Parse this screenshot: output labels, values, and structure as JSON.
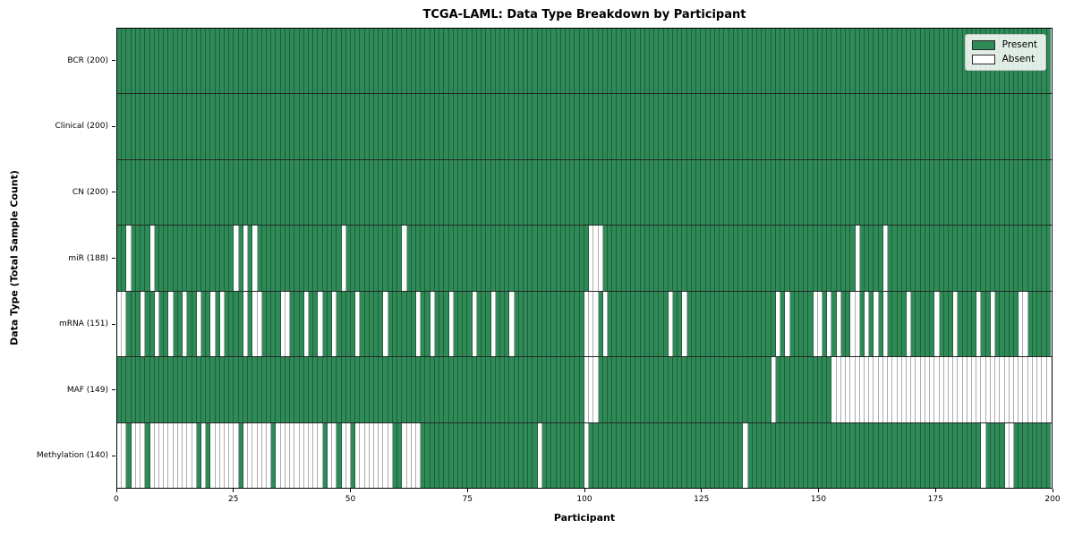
{
  "chart_data": {
    "type": "heatmap",
    "title": "TCGA-LAML: Data Type Breakdown by Participant",
    "xlabel": "Participant",
    "ylabel": "Data Type (Total Sample Count)",
    "x_ticks": [
      0,
      25,
      50,
      75,
      100,
      125,
      150,
      175,
      200
    ],
    "n_participants": 200,
    "xlim": [
      0,
      200
    ],
    "grid": "cell-borders",
    "legend_position": "upper right",
    "legend": {
      "present_label": "Present",
      "absent_label": "Absent"
    },
    "colors": {
      "present": "#2e8b57",
      "absent": "#ffffff"
    },
    "rows": [
      {
        "label": "BCR (200)",
        "name": "BCR",
        "present_count": 200,
        "absent_participants": []
      },
      {
        "label": "Clinical (200)",
        "name": "Clinical",
        "present_count": 200,
        "absent_participants": []
      },
      {
        "label": "CN (200)",
        "name": "CN",
        "present_count": 200,
        "absent_participants": []
      },
      {
        "label": "miR (188)",
        "name": "miR",
        "present_count": 188,
        "absent_participants": [
          2,
          7,
          25,
          27,
          29,
          48,
          61,
          101,
          102,
          103,
          158,
          164
        ]
      },
      {
        "label": "mRNA (151)",
        "name": "mRNA",
        "present_count": 151,
        "absent_participants": [
          0,
          1,
          5,
          8,
          11,
          14,
          17,
          20,
          22,
          27,
          29,
          30,
          35,
          36,
          40,
          43,
          46,
          51,
          57,
          64,
          67,
          71,
          76,
          80,
          84,
          100,
          101,
          102,
          104,
          118,
          121,
          141,
          143,
          149,
          150,
          152,
          154,
          157,
          158,
          160,
          162,
          164,
          169,
          175,
          179,
          184,
          187,
          193,
          194
        ]
      },
      {
        "label": "MAF (149)",
        "name": "MAF",
        "present_count": 149,
        "absent_participants": [
          100,
          101,
          102,
          140,
          153,
          154,
          155,
          156,
          157,
          158,
          159,
          160,
          161,
          162,
          163,
          164,
          165,
          166,
          167,
          168,
          169,
          170,
          171,
          172,
          173,
          174,
          175,
          176,
          177,
          178,
          179,
          180,
          181,
          182,
          183,
          184,
          185,
          186,
          187,
          188,
          189,
          190,
          191,
          192,
          193,
          194,
          195,
          196,
          197,
          198,
          199
        ]
      },
      {
        "label": "Methylation (140)",
        "name": "Methylation",
        "present_count": 140,
        "absent_participants": [
          0,
          1,
          3,
          4,
          5,
          7,
          8,
          9,
          10,
          11,
          12,
          13,
          14,
          15,
          16,
          18,
          20,
          21,
          22,
          23,
          24,
          25,
          27,
          28,
          29,
          30,
          31,
          32,
          34,
          35,
          36,
          37,
          38,
          39,
          40,
          41,
          42,
          43,
          45,
          46,
          48,
          49,
          51,
          52,
          53,
          54,
          55,
          56,
          57,
          58,
          61,
          62,
          63,
          64,
          90,
          100,
          134,
          185,
          190,
          191
        ]
      }
    ]
  }
}
